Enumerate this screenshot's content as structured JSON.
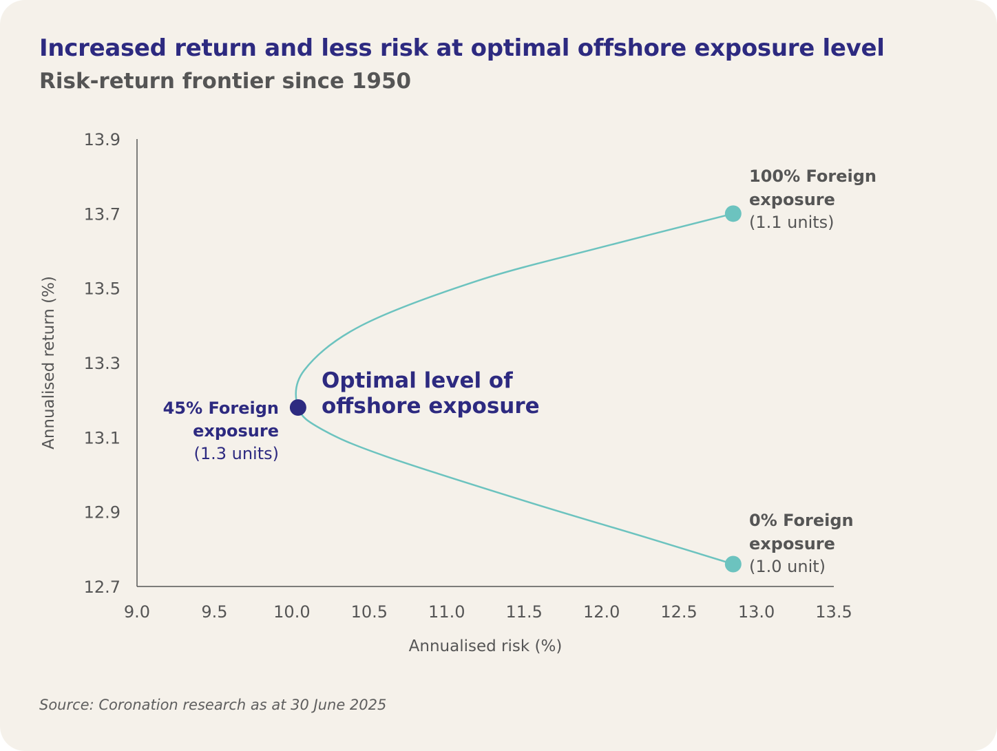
{
  "title": "Increased return and less risk at optimal offshore exposure level",
  "subtitle": "Risk-return frontier since 1950",
  "source": "Source: Coronation research as at 30 June 2025",
  "colors": {
    "background": "#f5f1ea",
    "curve": "#6cc3bf",
    "optimal_point": "#2d2a80",
    "title": "#2d2a80",
    "text": "#555555"
  },
  "chart_data": {
    "type": "line",
    "xlabel": "Annualised risk (%)",
    "ylabel": "Annualised return (%)",
    "xlim": [
      9.0,
      13.5
    ],
    "ylim": [
      12.7,
      13.9
    ],
    "xticks": [
      "9.0",
      "9.5",
      "10.0",
      "10.5",
      "11.0",
      "11.5",
      "12.0",
      "12.5",
      "13.0",
      "13.5"
    ],
    "yticks": [
      "12.7",
      "12.9",
      "13.1",
      "13.3",
      "13.5",
      "13.7",
      "13.9"
    ],
    "grid": false,
    "series": [
      {
        "name": "Risk-return frontier",
        "points": [
          {
            "x": 12.85,
            "y": 12.76
          },
          {
            "x": 12.3,
            "y": 12.83
          },
          {
            "x": 11.5,
            "y": 12.93
          },
          {
            "x": 10.6,
            "y": 13.05
          },
          {
            "x": 10.2,
            "y": 13.12
          },
          {
            "x": 10.04,
            "y": 13.18
          },
          {
            "x": 10.08,
            "y": 13.28
          },
          {
            "x": 10.45,
            "y": 13.4
          },
          {
            "x": 11.2,
            "y": 13.52
          },
          {
            "x": 12.0,
            "y": 13.61
          },
          {
            "x": 12.85,
            "y": 13.7
          }
        ]
      }
    ],
    "highlighted_points": [
      {
        "key": "foreign100",
        "x": 12.85,
        "y": 13.7
      },
      {
        "key": "foreign0",
        "x": 12.85,
        "y": 12.76
      },
      {
        "key": "optimal",
        "x": 10.04,
        "y": 13.18
      }
    ],
    "annotations": {
      "foreign100": {
        "line1": "100% Foreign",
        "line2": "exposure",
        "line3": "(1.1 units)"
      },
      "foreign0": {
        "line1": "0% Foreign",
        "line2": "exposure",
        "line3": "(1.0 unit)"
      },
      "foreign45": {
        "line1": "45% Foreign",
        "line2": "exposure",
        "line3": "(1.3 units)"
      },
      "optimal": {
        "line1": "Optimal level of",
        "line2": "offshore exposure"
      }
    }
  }
}
